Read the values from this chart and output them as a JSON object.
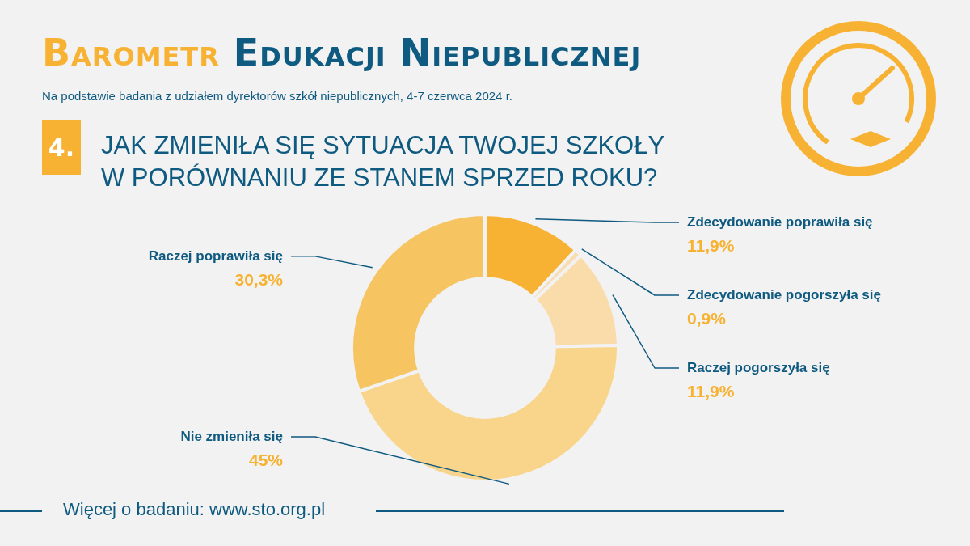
{
  "chart_data": {
    "type": "donut",
    "title": "Barometr Edukacji Niepublicznej",
    "subtitle": "Na podstawie badania z udziałem dyrektorów szkół niepublicznych, 4-7 czerwca 2024 r.",
    "annotations": [
      "4.",
      "JAK ZMIENIŁA SIĘ SYTUACJA TWOJEJ SZKOŁY\nW PORÓWNANIU ZE STANEM SPRZED ROKU?",
      "Więcej o badaniu: www.sto.org.pl"
    ],
    "categories": [
      "Zdecydowanie poprawiła się",
      "Zdecydowanie pogorszyła się",
      "Raczej pogorszyła się",
      "Nie zmieniła się",
      "Raczej poprawiła się"
    ],
    "values": [
      11.9,
      0.9,
      11.9,
      45,
      30.3
    ],
    "value_labels": [
      "11,9%",
      "0,9%",
      "11,9%",
      "45%",
      "30,3%"
    ],
    "colors": [
      "#f7b233",
      "#f9ddb0",
      "#f9dcaa",
      "#f8d58a",
      "#f7c462"
    ],
    "legend": false
  }
}
